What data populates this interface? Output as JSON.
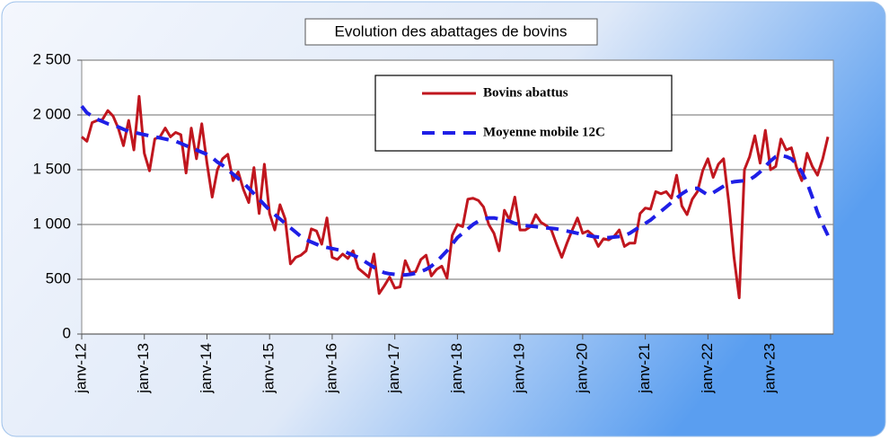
{
  "chart_data": {
    "type": "line",
    "title": "Evolution des abattages de bovins",
    "categories": [
      "janv-12",
      null,
      null,
      null,
      null,
      null,
      null,
      null,
      null,
      null,
      null,
      null,
      "janv-13",
      null,
      null,
      null,
      null,
      null,
      null,
      null,
      null,
      null,
      null,
      null,
      "janv-14",
      null,
      null,
      null,
      null,
      null,
      null,
      null,
      null,
      null,
      null,
      null,
      "janv-15",
      null,
      null,
      null,
      null,
      null,
      null,
      null,
      null,
      null,
      null,
      null,
      "janv-16",
      null,
      null,
      null,
      null,
      null,
      null,
      null,
      null,
      null,
      null,
      null,
      "janv-17",
      null,
      null,
      null,
      null,
      null,
      null,
      null,
      null,
      null,
      null,
      null,
      "janv-18",
      null,
      null,
      null,
      null,
      null,
      null,
      null,
      null,
      null,
      null,
      null,
      "janv-19",
      null,
      null,
      null,
      null,
      null,
      null,
      null,
      null,
      null,
      null,
      null,
      "janv-20",
      null,
      null,
      null,
      null,
      null,
      null,
      null,
      null,
      null,
      null,
      null,
      "janv-21",
      null,
      null,
      null,
      null,
      null,
      null,
      null,
      null,
      null,
      null,
      null,
      "janv-22",
      null,
      null,
      null,
      null,
      null,
      null,
      null,
      null,
      null,
      null,
      null,
      "janv-23",
      null,
      null,
      null,
      null,
      null,
      null,
      null,
      null,
      null,
      null,
      null
    ],
    "series": [
      {
        "name": "Bovins abattus",
        "color": "#c0161e",
        "dash": false,
        "values": [
          1800,
          1760,
          1930,
          1950,
          1960,
          2040,
          1990,
          1880,
          1720,
          1950,
          1680,
          2170,
          1650,
          1490,
          1780,
          1800,
          1880,
          1800,
          1840,
          1820,
          1470,
          1880,
          1600,
          1920,
          1560,
          1250,
          1500,
          1600,
          1640,
          1400,
          1480,
          1320,
          1200,
          1520,
          1100,
          1550,
          1100,
          950,
          1180,
          1050,
          640,
          700,
          720,
          760,
          960,
          940,
          820,
          1060,
          700,
          680,
          730,
          690,
          760,
          600,
          560,
          520,
          730,
          370,
          440,
          520,
          420,
          430,
          670,
          560,
          570,
          680,
          720,
          530,
          590,
          620,
          510,
          900,
          1000,
          980,
          1230,
          1240,
          1220,
          1160,
          1000,
          920,
          760,
          1130,
          1040,
          1250,
          950,
          950,
          980,
          1090,
          1020,
          990,
          950,
          820,
          700,
          830,
          950,
          1060,
          920,
          940,
          900,
          800,
          870,
          860,
          890,
          950,
          800,
          830,
          830,
          1100,
          1150,
          1140,
          1300,
          1280,
          1300,
          1240,
          1450,
          1170,
          1090,
          1230,
          1300,
          1490,
          1600,
          1430,
          1550,
          1600,
          1200,
          700,
          330,
          1500,
          1620,
          1810,
          1560,
          1860,
          1500,
          1530,
          1780,
          1680,
          1700,
          1520,
          1400,
          1650,
          1530,
          1450,
          1600,
          1800
        ]
      },
      {
        "name": "Moyenne mobile 12C",
        "color": "#1f1fe6",
        "dash": true,
        "values": [
          2080,
          2020,
          1990,
          1960,
          1940,
          1920,
          1910,
          1890,
          1870,
          1850,
          1840,
          1830,
          1820,
          1810,
          1800,
          1790,
          1780,
          1770,
          1760,
          1740,
          1720,
          1700,
          1680,
          1660,
          1640,
          1610,
          1570,
          1540,
          1500,
          1460,
          1420,
          1380,
          1330,
          1280,
          1230,
          1180,
          1130,
          1090,
          1050,
          1010,
          970,
          930,
          890,
          860,
          840,
          820,
          800,
          790,
          780,
          770,
          760,
          740,
          720,
          700,
          670,
          640,
          610,
          580,
          560,
          550,
          545,
          540,
          540,
          545,
          555,
          570,
          590,
          620,
          660,
          710,
          760,
          820,
          880,
          920,
          960,
          1000,
          1030,
          1050,
          1060,
          1060,
          1050,
          1040,
          1030,
          1010,
          1000,
          990,
          985,
          980,
          975,
          970,
          965,
          960,
          950,
          940,
          930,
          920,
          910,
          900,
          890,
          885,
          880,
          880,
          885,
          890,
          900,
          920,
          950,
          980,
          1010,
          1040,
          1080,
          1120,
          1160,
          1200,
          1240,
          1280,
          1310,
          1330,
          1330,
          1300,
          1270,
          1290,
          1320,
          1350,
          1380,
          1390,
          1395,
          1400,
          1410,
          1440,
          1480,
          1530,
          1580,
          1620,
          1630,
          1620,
          1600,
          1550,
          1480,
          1380,
          1250,
          1110,
          1000,
          900
        ]
      }
    ],
    "ylim": [
      0,
      2500
    ],
    "yticks": [
      0,
      500,
      {
        "value": 1000,
        "label": "1 000"
      },
      {
        "value": 1500,
        "label": "1 500"
      },
      {
        "value": 2000,
        "label": "2 000"
      },
      {
        "value": 2500,
        "label": "2 500"
      }
    ],
    "grid": true,
    "legend": "upper center"
  }
}
